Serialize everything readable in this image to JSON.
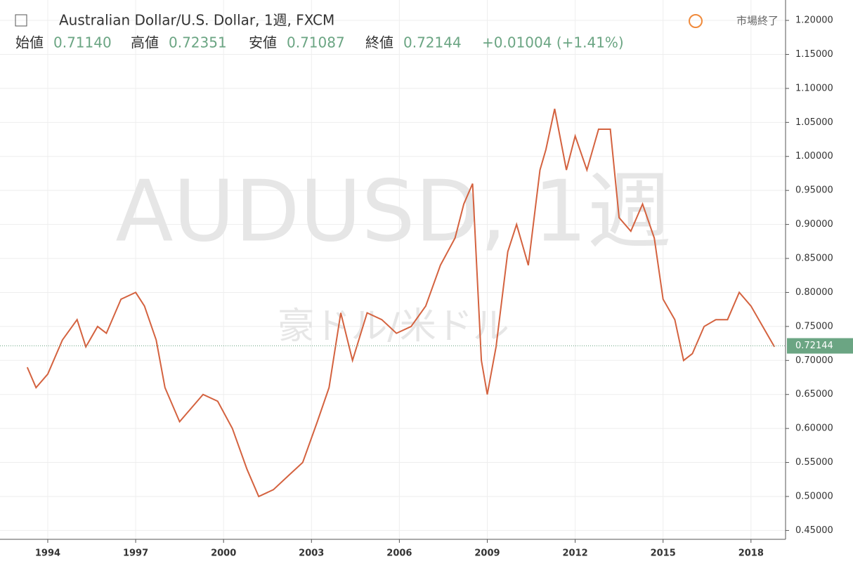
{
  "header": {
    "title": "Australian Dollar/U.S. Dollar, 1週, FXCM",
    "status": "市場終了",
    "open_label": "始値",
    "open": "0.71140",
    "high_label": "高値",
    "high": "0.72351",
    "low_label": "安値",
    "low": "0.71087",
    "close_label": "終値",
    "close": "0.72144",
    "change": "+0.01004 (+1.41%)",
    "watermark": "AUDUSD, 1週",
    "watermark_sub": "豪ドル/米ドル"
  },
  "chart_data": {
    "type": "line",
    "x": [
      1993.3,
      1993.6,
      1994.0,
      1994.5,
      1995.0,
      1995.3,
      1995.7,
      1996.0,
      1996.5,
      1997.0,
      1997.3,
      1997.7,
      1998.0,
      1998.5,
      1998.9,
      1999.3,
      1999.8,
      2000.3,
      2000.8,
      2001.2,
      2001.7,
      2002.2,
      2002.7,
      2003.2,
      2003.6,
      2004.0,
      2004.4,
      2004.9,
      2005.4,
      2005.9,
      2006.4,
      2006.9,
      2007.4,
      2007.9,
      2008.2,
      2008.5,
      2008.8,
      2009.0,
      2009.3,
      2009.7,
      2010.0,
      2010.4,
      2010.8,
      2011.0,
      2011.3,
      2011.7,
      2012.0,
      2012.4,
      2012.8,
      2013.2,
      2013.5,
      2013.9,
      2014.3,
      2014.7,
      2015.0,
      2015.4,
      2015.7,
      2016.0,
      2016.4,
      2016.8,
      2017.2,
      2017.6,
      2018.0,
      2018.4,
      2018.8
    ],
    "series": [
      {
        "color": "#d4623f",
        "values": [
          0.69,
          0.66,
          0.68,
          0.73,
          0.76,
          0.72,
          0.75,
          0.74,
          0.79,
          0.8,
          0.78,
          0.73,
          0.66,
          0.61,
          0.63,
          0.65,
          0.64,
          0.6,
          0.54,
          0.5,
          0.51,
          0.53,
          0.55,
          0.61,
          0.66,
          0.77,
          0.7,
          0.77,
          0.76,
          0.74,
          0.75,
          0.78,
          0.84,
          0.88,
          0.93,
          0.96,
          0.7,
          0.65,
          0.72,
          0.86,
          0.9,
          0.84,
          0.98,
          1.01,
          1.07,
          0.98,
          1.03,
          0.98,
          1.04,
          1.04,
          0.91,
          0.89,
          0.93,
          0.88,
          0.79,
          0.76,
          0.7,
          0.71,
          0.75,
          0.76,
          0.76,
          0.8,
          0.78,
          0.75,
          0.72
        ]
      }
    ],
    "last_price": 0.72144,
    "last_price_color": "#6ba583",
    "xlim": [
      1992.37,
      2019.18
    ],
    "xticks": [
      1994,
      1997,
      2000,
      2003,
      2006,
      2009,
      2012,
      2015,
      2018
    ],
    "ylim": [
      0.437,
      1.23
    ],
    "yticks": [
      {
        "value": 0.45,
        "label": "0.45000"
      },
      {
        "value": 0.5,
        "label": "0.50000"
      },
      {
        "value": 0.55,
        "label": "0.55000"
      },
      {
        "value": 0.6,
        "label": "0.60000"
      },
      {
        "value": 0.65,
        "label": "0.65000"
      },
      {
        "value": 0.7,
        "label": "0.70000"
      },
      {
        "value": 0.75,
        "label": "0.75000"
      },
      {
        "value": 0.8,
        "label": "0.80000"
      },
      {
        "value": 0.85,
        "label": "0.85000"
      },
      {
        "value": 0.9,
        "label": "0.90000"
      },
      {
        "value": 0.95,
        "label": "0.95000"
      },
      {
        "value": 1.0,
        "label": "1.00000"
      },
      {
        "value": 1.05,
        "label": "1.05000"
      },
      {
        "value": 1.1,
        "label": "1.10000"
      },
      {
        "value": 1.15,
        "label": "1.15000"
      },
      {
        "value": 1.2,
        "label": "1.20000"
      }
    ],
    "grid": true
  }
}
